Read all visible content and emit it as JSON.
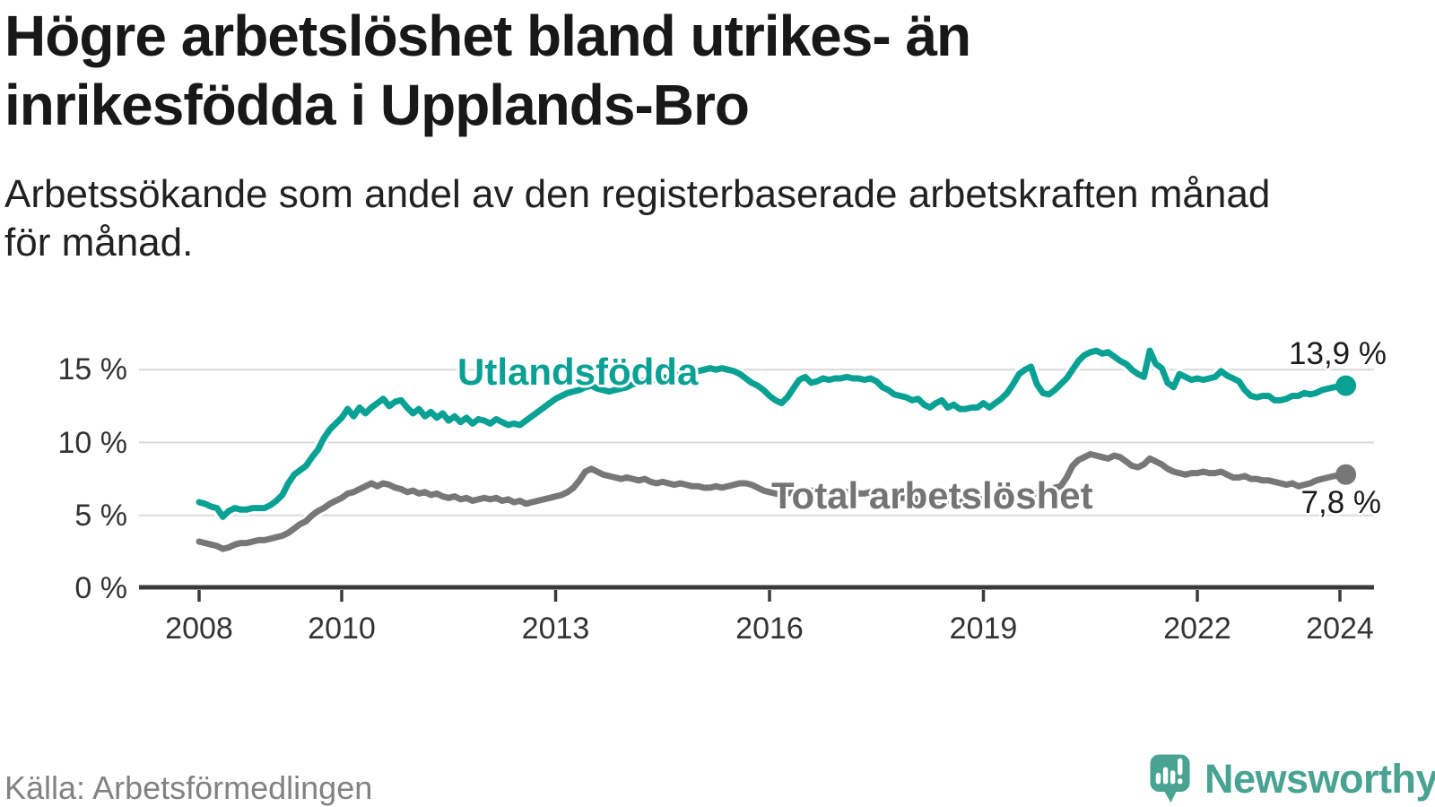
{
  "header": {
    "title_lines": [
      "Högre arbetslöshet bland utrikes- än",
      "inrikesfödda i Upplands-Bro"
    ],
    "subtitle_lines": [
      "Arbetssökande som andel av den registerbaserade arbetskraften månad",
      "för månad."
    ]
  },
  "chart_data": {
    "type": "line",
    "title": "Högre arbetslöshet bland utrikes- än inrikesfödda i Upplands-Bro",
    "subtitle": "Arbetssökande som andel av den registerbaserade arbetskraften månad för månad.",
    "x_start": "2008-01",
    "x_end": "2024-02",
    "frequency": "monthly",
    "grid": "horizontal",
    "legend_position": "inline-labels",
    "ylim": [
      0,
      17.5
    ],
    "axis_color": "#3a3a3a",
    "grid_color": "#d9d9d9",
    "x_tick_years": [
      2008,
      2010,
      2013,
      2016,
      2019,
      2022,
      2024
    ],
    "y_ticks": [
      {
        "value": 0,
        "label": "0 %"
      },
      {
        "value": 5,
        "label": "5 %"
      },
      {
        "value": 10,
        "label": "10 %"
      },
      {
        "value": 15,
        "label": "15 %"
      }
    ],
    "series": [
      {
        "id": "utlandsfodda",
        "name": "Utlandsfödda",
        "color": "#0aa195",
        "end_value": 13.9,
        "end_label": "13,9 %",
        "values": [
          5.9,
          5.8,
          5.6,
          5.5,
          4.9,
          5.3,
          5.5,
          5.4,
          5.4,
          5.5,
          5.5,
          5.5,
          5.7,
          6.0,
          6.4,
          7.2,
          7.8,
          8.1,
          8.4,
          9.0,
          9.5,
          10.3,
          10.9,
          11.3,
          11.7,
          12.3,
          11.8,
          12.4,
          12.0,
          12.4,
          12.7,
          13.0,
          12.5,
          12.8,
          12.9,
          12.4,
          12.0,
          12.3,
          11.8,
          12.1,
          11.7,
          12.0,
          11.5,
          11.8,
          11.4,
          11.7,
          11.3,
          11.6,
          11.5,
          11.3,
          11.6,
          11.4,
          11.2,
          11.3,
          11.2,
          11.5,
          11.8,
          12.1,
          12.4,
          12.7,
          13.0,
          13.2,
          13.4,
          13.5,
          13.6,
          13.8,
          13.9,
          13.7,
          13.6,
          13.5,
          13.6,
          13.7,
          13.8,
          14.0,
          14.1,
          14.3,
          14.2,
          14.4,
          14.5,
          14.4,
          14.6,
          14.7,
          14.8,
          14.9,
          14.9,
          15.0,
          15.1,
          15.0,
          15.1,
          15.0,
          14.9,
          14.7,
          14.4,
          14.1,
          13.9,
          13.6,
          13.2,
          12.9,
          12.7,
          13.1,
          13.7,
          14.3,
          14.5,
          14.1,
          14.2,
          14.4,
          14.3,
          14.4,
          14.4,
          14.5,
          14.4,
          14.4,
          14.3,
          14.4,
          14.2,
          13.8,
          13.6,
          13.3,
          13.2,
          13.1,
          12.9,
          13.0,
          12.6,
          12.4,
          12.7,
          12.9,
          12.4,
          12.6,
          12.3,
          12.3,
          12.4,
          12.4,
          12.7,
          12.4,
          12.7,
          13.0,
          13.4,
          14.0,
          14.7,
          15.0,
          15.2,
          14.0,
          13.4,
          13.3,
          13.6,
          14.0,
          14.4,
          15.0,
          15.6,
          16.0,
          16.2,
          16.3,
          16.1,
          16.2,
          15.9,
          15.6,
          15.4,
          15.0,
          14.7,
          14.5,
          16.3,
          15.4,
          15.1,
          14.1,
          13.8,
          14.7,
          14.5,
          14.3,
          14.4,
          14.3,
          14.4,
          14.5,
          14.9,
          14.6,
          14.4,
          14.2,
          13.6,
          13.2,
          13.1,
          13.2,
          13.2,
          12.9,
          12.9,
          13.0,
          13.2,
          13.2,
          13.4,
          13.3,
          13.4,
          13.6,
          13.7,
          13.8,
          13.8,
          13.9
        ]
      },
      {
        "id": "total",
        "name": "Total arbetslöshet",
        "color": "#777777",
        "end_value": 7.8,
        "end_label": "7,8 %",
        "values": [
          3.2,
          3.1,
          3.0,
          2.9,
          2.7,
          2.8,
          3.0,
          3.1,
          3.1,
          3.2,
          3.3,
          3.3,
          3.4,
          3.5,
          3.6,
          3.8,
          4.1,
          4.4,
          4.6,
          5.0,
          5.3,
          5.5,
          5.8,
          6.0,
          6.2,
          6.5,
          6.6,
          6.8,
          7.0,
          7.2,
          7.0,
          7.2,
          7.1,
          6.9,
          6.8,
          6.6,
          6.7,
          6.5,
          6.6,
          6.4,
          6.5,
          6.3,
          6.2,
          6.3,
          6.1,
          6.2,
          6.0,
          6.1,
          6.2,
          6.1,
          6.2,
          6.0,
          6.1,
          5.9,
          6.0,
          5.8,
          5.9,
          6.0,
          6.1,
          6.2,
          6.3,
          6.4,
          6.6,
          6.9,
          7.4,
          8.0,
          8.2,
          8.0,
          7.8,
          7.7,
          7.6,
          7.5,
          7.6,
          7.5,
          7.4,
          7.5,
          7.3,
          7.2,
          7.3,
          7.2,
          7.1,
          7.2,
          7.1,
          7.0,
          7.0,
          6.9,
          6.9,
          7.0,
          6.9,
          7.0,
          7.1,
          7.2,
          7.2,
          7.1,
          6.9,
          6.7,
          6.6,
          6.5,
          6.4,
          6.5,
          6.6,
          6.7,
          6.6,
          6.7,
          6.6,
          6.7,
          6.6,
          6.7,
          6.7,
          6.6,
          6.6,
          6.5,
          6.5,
          6.6,
          6.5,
          6.4,
          6.3,
          6.3,
          6.2,
          6.2,
          6.2,
          6.1,
          6.1,
          6.0,
          6.0,
          6.1,
          6.0,
          5.9,
          5.9,
          6.0,
          6.0,
          6.1,
          6.1,
          6.2,
          6.2,
          6.3,
          6.3,
          6.4,
          6.5,
          6.5,
          6.6,
          6.5,
          6.6,
          6.7,
          6.9,
          7.0,
          7.6,
          8.4,
          8.8,
          9.0,
          9.2,
          9.1,
          9.0,
          8.9,
          9.1,
          9.0,
          8.7,
          8.4,
          8.3,
          8.5,
          8.9,
          8.7,
          8.5,
          8.2,
          8.0,
          7.9,
          7.8,
          7.9,
          7.9,
          8.0,
          7.9,
          7.9,
          8.0,
          7.8,
          7.6,
          7.6,
          7.7,
          7.5,
          7.5,
          7.4,
          7.4,
          7.3,
          7.2,
          7.1,
          7.2,
          7.0,
          7.1,
          7.2,
          7.4,
          7.5,
          7.6,
          7.7,
          7.7,
          7.8
        ]
      }
    ]
  },
  "footer": {
    "source": "Källa: Arbetsförmedlingen",
    "logo_text": "Newsworthy",
    "logo_icon": "speech-bubble-bar-chart-icon"
  }
}
